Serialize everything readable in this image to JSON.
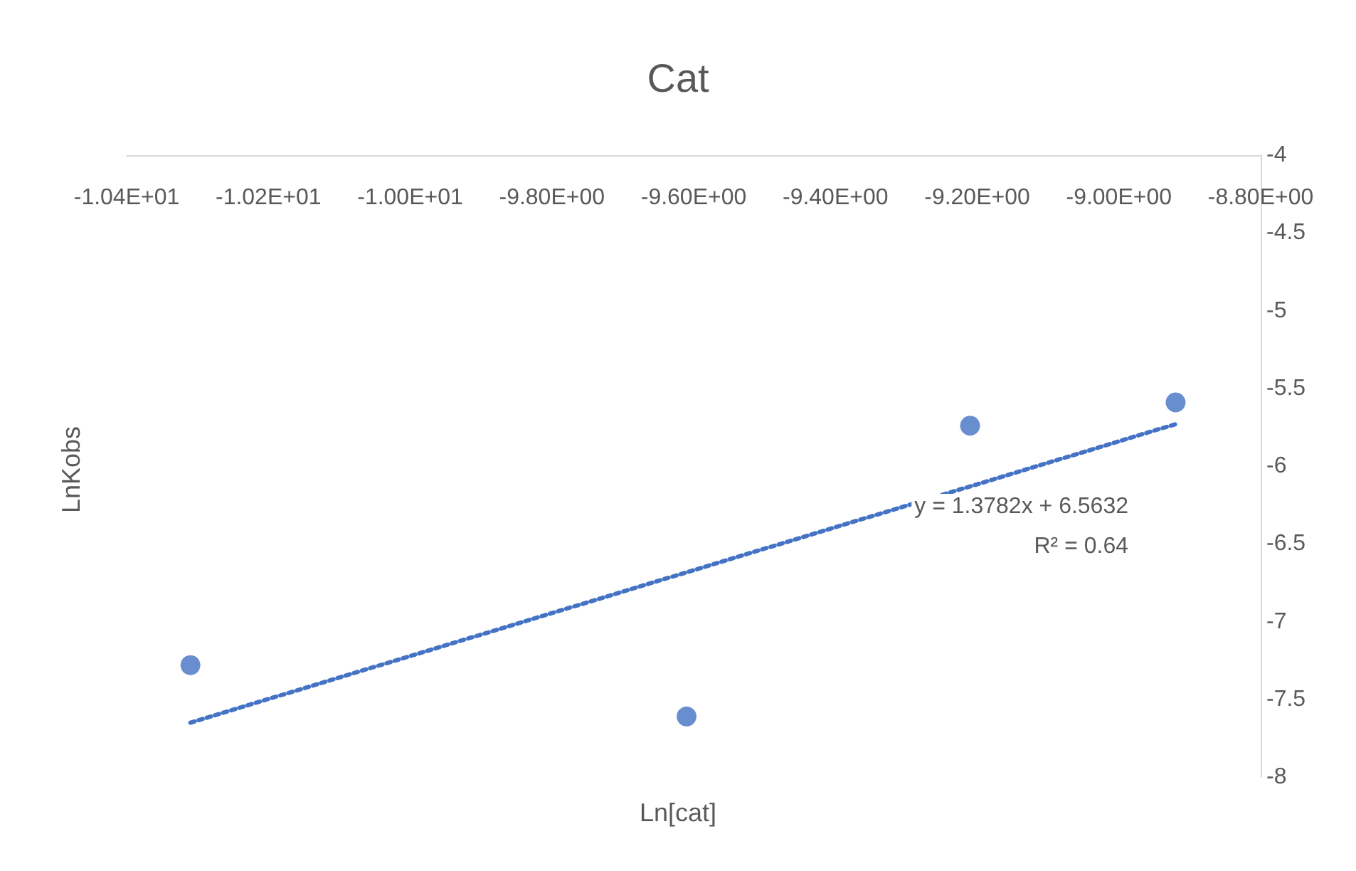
{
  "chart_data": {
    "type": "scatter",
    "title": "Cat",
    "xlabel": "Ln[cat]",
    "ylabel": "LnKobs",
    "xlim": [
      -10.4,
      -8.8
    ],
    "xticks": [
      {
        "value": -10.4,
        "label": "-1.04E+01"
      },
      {
        "value": -10.2,
        "label": "-1.02E+01"
      },
      {
        "value": -10.0,
        "label": "-1.00E+01"
      },
      {
        "value": -9.8,
        "label": "-9.80E+00"
      },
      {
        "value": -9.6,
        "label": "-9.60E+00"
      },
      {
        "value": -9.4,
        "label": "-9.40E+00"
      },
      {
        "value": -9.2,
        "label": "-9.20E+00"
      },
      {
        "value": -9.0,
        "label": "-9.00E+00"
      },
      {
        "value": -8.8,
        "label": "-8.80E+00"
      }
    ],
    "ylim": [
      -8,
      -4
    ],
    "yticks": [
      -4,
      -4.5,
      -5,
      -5.5,
      -6,
      -6.5,
      -7,
      -7.5,
      -8
    ],
    "grid": false,
    "marker": "circle",
    "annotations": [
      "y = 1.3782x + 6.5632",
      "R² = 0.64"
    ],
    "series": [
      {
        "color": "#4472c4",
        "x": [
          -10.31,
          -9.61,
          -9.21,
          -8.92
        ],
        "values": [
          -7.28,
          -7.61,
          -5.74,
          -5.59
        ]
      },
      {
        "type": "line",
        "color": "#4472c4",
        "line_style": "dotted",
        "marker": "none",
        "x": [
          -10.31,
          -8.92
        ],
        "values": [
          -7.65,
          -5.73
        ]
      }
    ]
  }
}
